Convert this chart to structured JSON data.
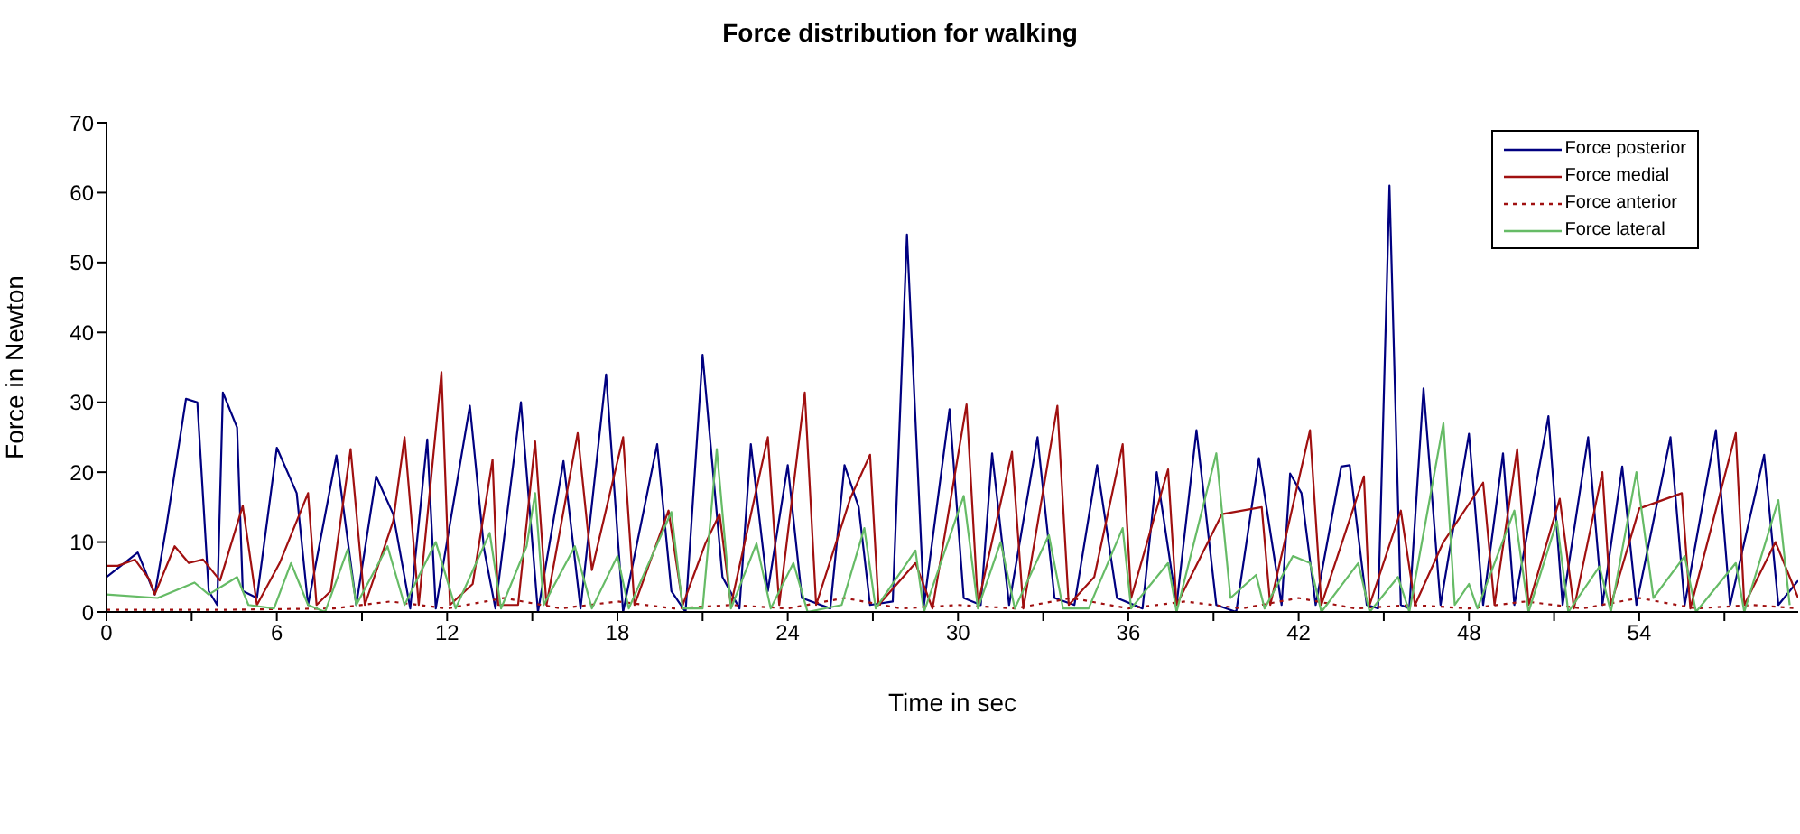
{
  "chart_data": {
    "type": "line",
    "title": "Force distribution for walking",
    "xlabel": "Time in sec",
    "ylabel": "Force in Newton",
    "xlim": [
      0,
      59.6
    ],
    "xticks": [
      0,
      {
        "value": 3,
        "label": null
      },
      6,
      {
        "value": 9,
        "label": null
      },
      12,
      {
        "value": 15,
        "label": null
      },
      18,
      {
        "value": 21,
        "label": null
      },
      24,
      {
        "value": 27,
        "label": null
      },
      30,
      {
        "value": 33,
        "label": null
      },
      36,
      {
        "value": 39,
        "label": null
      },
      42,
      {
        "value": 45,
        "label": null
      },
      48,
      {
        "value": 51,
        "label": null
      },
      54,
      {
        "value": 57,
        "label": null
      }
    ],
    "ylim": [
      0,
      70
    ],
    "yticks": [
      0,
      10,
      20,
      30,
      40,
      50,
      60,
      70
    ],
    "grid": false,
    "legend": "top right",
    "marker": "none",
    "series": [
      {
        "name": "Force posterior",
        "color": "#000080",
        "line_style": "solid",
        "x": [
          0,
          1.1,
          1.7,
          2.1,
          2.8,
          3.2,
          3.6,
          3.9,
          4.1,
          4.6,
          4.8,
          5.3,
          6.0,
          6.7,
          7.1,
          8.1,
          8.8,
          9.5,
          10.1,
          10.7,
          11.3,
          11.6,
          12.8,
          13.3,
          13.7,
          14.6,
          15.2,
          16.1,
          16.7,
          17.6,
          18.2,
          19.4,
          19.9,
          20.4,
          21.0,
          21.7,
          22.3,
          22.7,
          23.3,
          24.0,
          24.5,
          25.5,
          26.0,
          26.5,
          26.9,
          27.7,
          28.2,
          28.8,
          29.7,
          30.2,
          30.8,
          31.2,
          31.8,
          32.8,
          33.4,
          34.1,
          34.9,
          35.6,
          36.5,
          37.0,
          37.7,
          38.4,
          39.1,
          39.8,
          40.6,
          41.4,
          41.7,
          42.1,
          42.6,
          43.5,
          43.8,
          44.4,
          44.8,
          45.2,
          45.6,
          45.9,
          46.4,
          47.0,
          48.0,
          48.5,
          49.2,
          49.6,
          50.8,
          51.3,
          52.2,
          52.7,
          53.4,
          53.9,
          55.1,
          55.6,
          56.7,
          57.2,
          58.4,
          58.9,
          59.6
        ],
        "values": [
          5,
          8.5,
          2.5,
          12,
          30.5,
          30,
          3,
          1,
          31.4,
          26.4,
          3,
          2,
          23.5,
          17,
          1,
          22.4,
          1,
          19.4,
          14,
          0.5,
          24.7,
          0.5,
          29.5,
          9,
          0.5,
          30,
          0,
          21.6,
          0.5,
          34,
          0,
          24,
          3,
          0,
          36.8,
          5,
          0.5,
          24,
          3,
          21,
          2,
          0.5,
          21,
          15,
          1,
          1.5,
          54,
          1,
          29,
          2,
          1,
          22.7,
          1,
          25,
          2,
          1,
          21,
          2,
          0.5,
          20,
          1,
          26,
          1,
          0,
          22,
          1,
          19.8,
          17,
          1,
          20.8,
          21,
          1,
          0.5,
          61,
          1,
          0.5,
          32,
          1,
          25.5,
          1,
          22.7,
          1,
          28,
          1,
          25,
          1,
          20.8,
          1,
          25,
          1,
          26,
          1,
          22.5,
          1,
          4.5
        ]
      },
      {
        "name": "Force medial",
        "color": "#a01010",
        "line_style": "solid",
        "x": [
          0,
          0.4,
          1.0,
          1.5,
          1.7,
          2.4,
          2.9,
          3.4,
          4.0,
          4.8,
          5.3,
          6.1,
          6.7,
          7.1,
          7.4,
          7.9,
          8.6,
          9.1,
          10.1,
          10.5,
          11.0,
          11.8,
          12.1,
          12.9,
          13.6,
          13.8,
          14.5,
          15.1,
          15.5,
          16.6,
          17.1,
          18.2,
          18.6,
          19.8,
          20.3,
          21.1,
          21.6,
          22.0,
          23.3,
          23.7,
          24.6,
          25.0,
          26.2,
          26.9,
          27.2,
          28.5,
          29.1,
          30.3,
          30.7,
          31.9,
          32.3,
          33.5,
          33.9,
          34.8,
          35.8,
          36.1,
          37.4,
          37.7,
          39.3,
          40.7,
          41.0,
          42.4,
          42.8,
          44.3,
          44.5,
          45.6,
          46.1,
          47.1,
          48.5,
          48.9,
          49.7,
          50.1,
          51.2,
          51.7,
          52.7,
          53.0,
          54.0,
          55.5,
          55.8,
          57.4,
          57.7,
          58.8,
          59.6
        ],
        "values": [
          6.6,
          6.6,
          7.5,
          4.7,
          2.5,
          9.4,
          7,
          7.5,
          4.5,
          15.2,
          1,
          7,
          13,
          17,
          1,
          3,
          23.3,
          1,
          13,
          25,
          1,
          34.3,
          1,
          4,
          21.8,
          1,
          1,
          24.4,
          1,
          25.6,
          6,
          25,
          1,
          14.5,
          1,
          9.8,
          14,
          1,
          25,
          1,
          31.4,
          1,
          16.2,
          22.5,
          1,
          7,
          0.5,
          29.7,
          1,
          22.9,
          0.5,
          29.5,
          1,
          5,
          24,
          2,
          20.4,
          1,
          14,
          15,
          1,
          26,
          1,
          19.4,
          1,
          14.5,
          1,
          10,
          18.5,
          1,
          23.3,
          1,
          16.2,
          0.5,
          20,
          1,
          14.8,
          17,
          0.5,
          25.6,
          1,
          10,
          2
        ]
      },
      {
        "name": "Force anterior",
        "color": "#a01010",
        "line_style": "dotted",
        "x": [
          0,
          4,
          8,
          10,
          12,
          14,
          16,
          18,
          20,
          22,
          24,
          26,
          28,
          30,
          32,
          34,
          36,
          38,
          40,
          42,
          44,
          46,
          48,
          50,
          52,
          54,
          56,
          58,
          59.6
        ],
        "values": [
          0.3,
          0.3,
          0.5,
          1.5,
          0.5,
          2,
          0.5,
          1.5,
          0.5,
          1,
          0.5,
          2,
          0.5,
          1,
          0.5,
          2,
          0.5,
          1.5,
          0.5,
          2,
          0.5,
          1,
          0.5,
          1.5,
          0.5,
          2,
          0.5,
          1,
          0.5
        ]
      },
      {
        "name": "Force lateral",
        "color": "#66bb66",
        "line_style": "solid",
        "x": [
          0,
          1.8,
          3.1,
          3.6,
          4.6,
          5.0,
          5.9,
          6.5,
          7.1,
          7.7,
          8.5,
          8.8,
          9.9,
          10.5,
          11.6,
          12.3,
          13.5,
          13.9,
          14.8,
          15.1,
          15.4,
          16.5,
          17.1,
          18.0,
          18.4,
          19.9,
          20.3,
          21.0,
          21.5,
          22.0,
          22.9,
          23.4,
          24.2,
          24.7,
          25.9,
          26.7,
          27.1,
          28.5,
          28.8,
          30.2,
          30.7,
          31.5,
          32.0,
          33.2,
          33.7,
          34.6,
          35.8,
          36.1,
          37.4,
          37.7,
          39.1,
          39.6,
          40.5,
          40.8,
          41.8,
          42.4,
          42.8,
          44.1,
          44.5,
          45.5,
          45.9,
          47.1,
          47.5,
          48.0,
          48.3,
          49.6,
          50.1,
          51.1,
          51.5,
          52.6,
          53.0,
          53.9,
          54.5,
          55.6,
          56.0,
          57.4,
          57.7,
          58.9,
          59.3
        ],
        "values": [
          2.5,
          2,
          4.2,
          2.5,
          5,
          1,
          0.5,
          7,
          1,
          0,
          9,
          1,
          9.4,
          1,
          10,
          0.5,
          11.3,
          0.5,
          9.4,
          17,
          1,
          9.4,
          0.5,
          8,
          0.5,
          14.3,
          0.5,
          0.5,
          23.3,
          0.5,
          9.8,
          0.5,
          7,
          0,
          1,
          12,
          0.5,
          8.8,
          0,
          16.6,
          0.5,
          10,
          0.5,
          11,
          0.5,
          0.5,
          12,
          0.5,
          7,
          0,
          22.7,
          2,
          5.3,
          0.5,
          8,
          7,
          0,
          7,
          0,
          5,
          0,
          27,
          1,
          4,
          0.5,
          14.5,
          0,
          13,
          0,
          6.5,
          0,
          20,
          2,
          8,
          0,
          7,
          0,
          16,
          1
        ]
      }
    ]
  }
}
